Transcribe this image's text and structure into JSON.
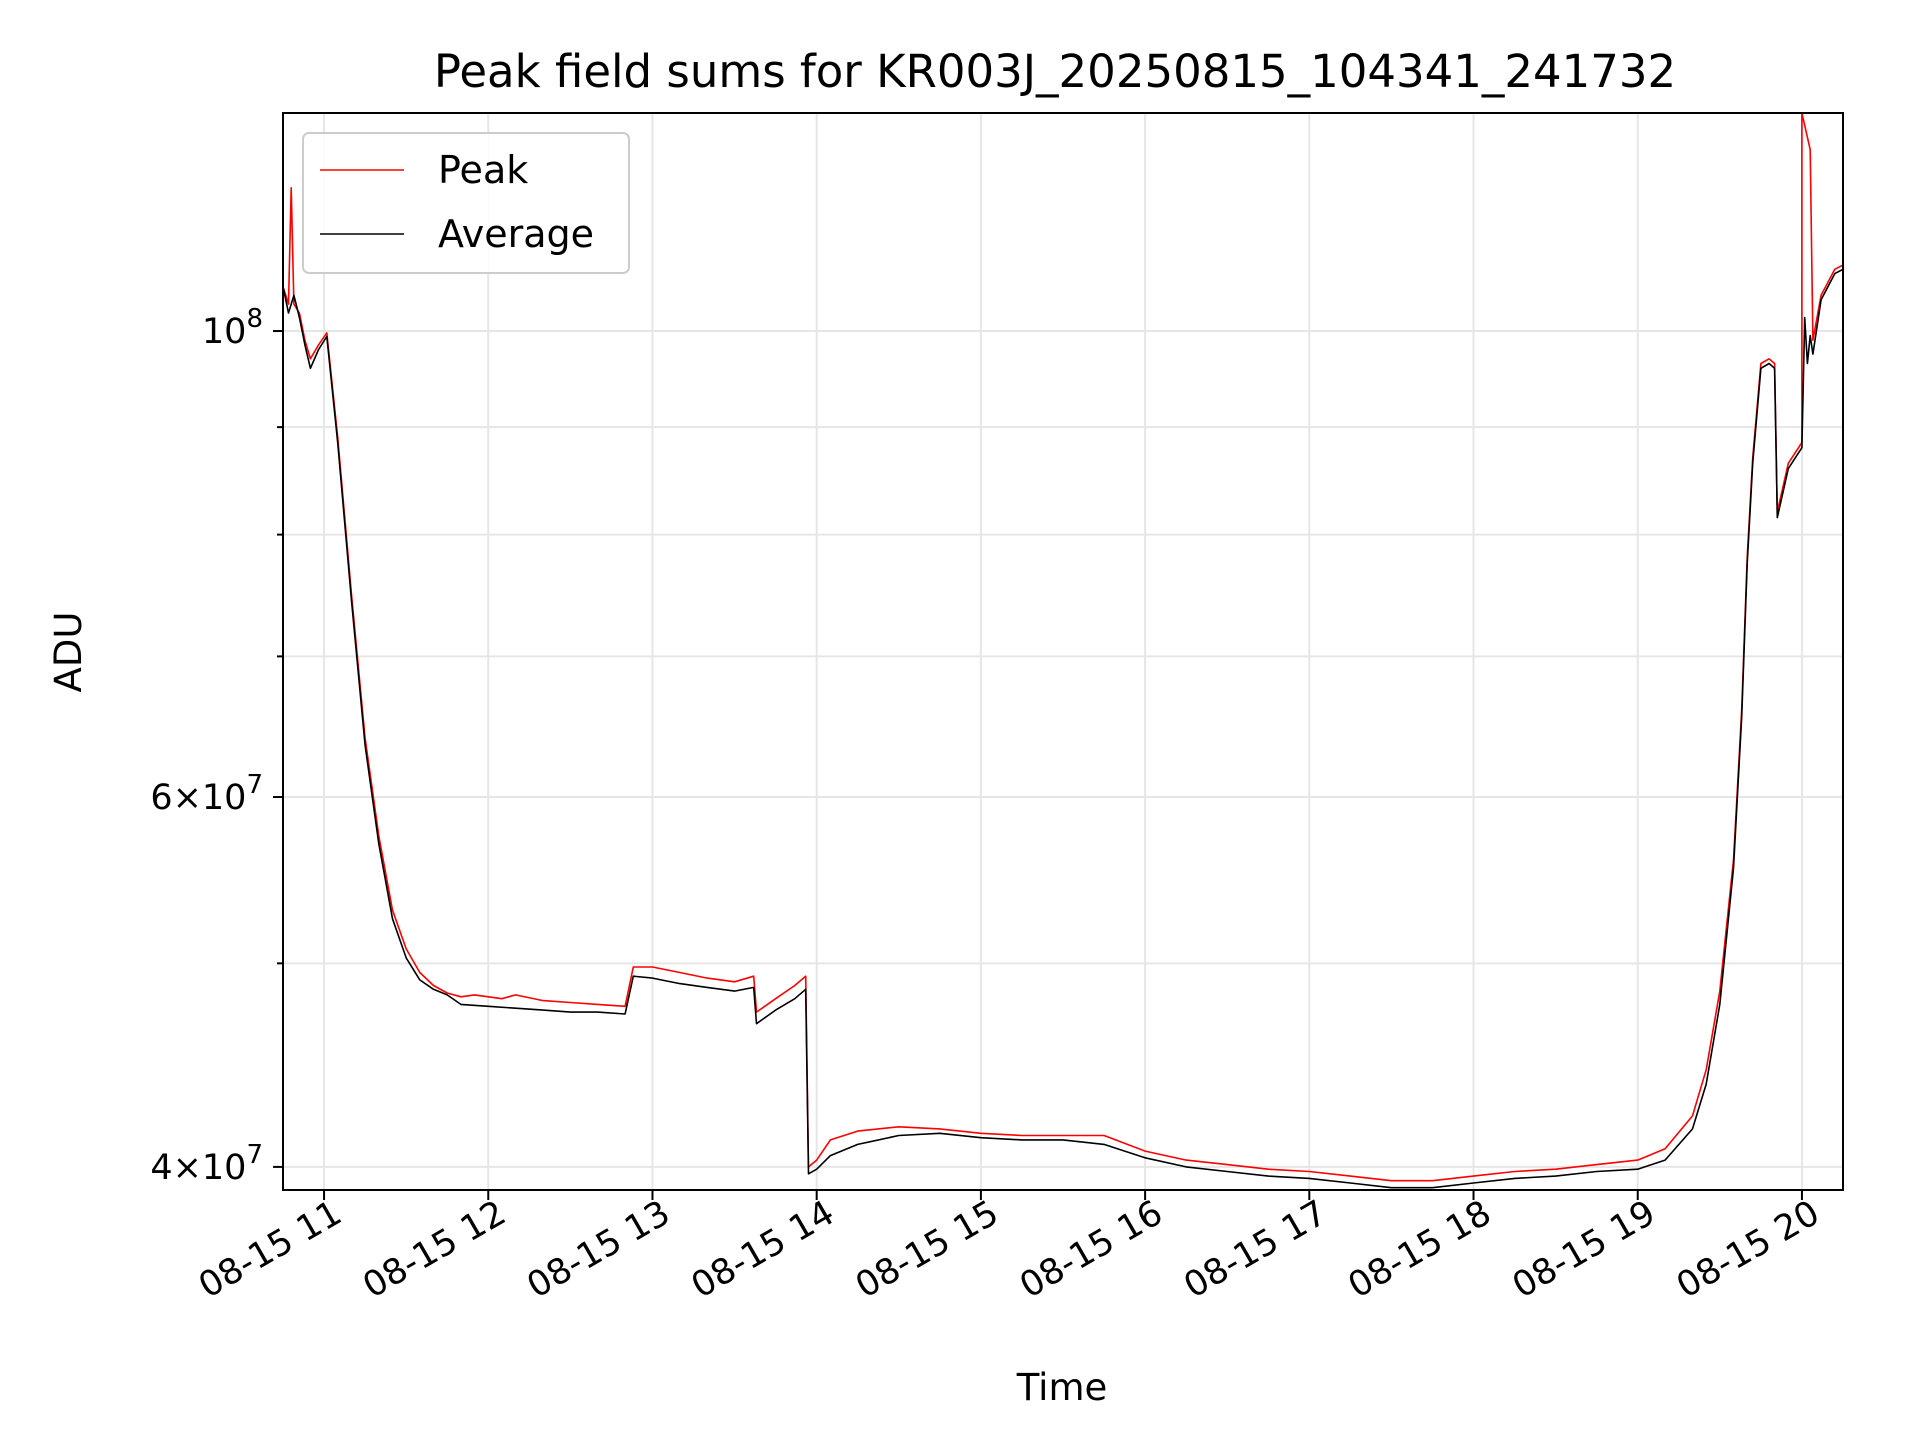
{
  "chart_data": {
    "type": "line",
    "title": "Peak field sums for KR003J_20250815_104341_241732",
    "xlabel": "Time",
    "ylabel": "ADU",
    "y_scale": "log",
    "xlim": [
      "2025-08-15 10:45",
      "2025-08-15 20:15"
    ],
    "ylim": [
      39000000,
      127000000
    ],
    "x_ticks": [
      {
        "t": "2025-08-15 11:00",
        "label": "08-15 11"
      },
      {
        "t": "2025-08-15 12:00",
        "label": "08-15 12"
      },
      {
        "t": "2025-08-15 13:00",
        "label": "08-15 13"
      },
      {
        "t": "2025-08-15 14:00",
        "label": "08-15 14"
      },
      {
        "t": "2025-08-15 15:00",
        "label": "08-15 15"
      },
      {
        "t": "2025-08-15 16:00",
        "label": "08-15 16"
      },
      {
        "t": "2025-08-15 17:00",
        "label": "08-15 17"
      },
      {
        "t": "2025-08-15 18:00",
        "label": "08-15 18"
      },
      {
        "t": "2025-08-15 19:00",
        "label": "08-15 19"
      },
      {
        "t": "2025-08-15 20:00",
        "label": "08-15 20"
      }
    ],
    "y_ticks_major": [
      {
        "v": 40000000,
        "base": "4×10",
        "exp": "7"
      },
      {
        "v": 60000000,
        "base": "6×10",
        "exp": "7"
      },
      {
        "v": 100000000,
        "base": "10",
        "exp": "8"
      }
    ],
    "y_ticks_minor": [
      50000000,
      70000000,
      80000000,
      90000000
    ],
    "grid": true,
    "legend_position": "upper left",
    "series": [
      {
        "name": "Peak",
        "color": "#ff0000",
        "points": [
          [
            "2025-08-15 10:44",
            106000000
          ],
          [
            "2025-08-15 10:47",
            103000000
          ],
          [
            "2025-08-15 10:48",
            117000000
          ],
          [
            "2025-08-15 10:49",
            103000000
          ],
          [
            "2025-08-15 10:51",
            102000000
          ],
          [
            "2025-08-15 10:53",
            99000000
          ],
          [
            "2025-08-15 10:55",
            97000000
          ],
          [
            "2025-08-15 10:58",
            98500000
          ],
          [
            "2025-08-15 11:01",
            99800000
          ],
          [
            "2025-08-15 11:05",
            89000000
          ],
          [
            "2025-08-15 11:10",
            75000000
          ],
          [
            "2025-08-15 11:15",
            64000000
          ],
          [
            "2025-08-15 11:20",
            57500000
          ],
          [
            "2025-08-15 11:25",
            53000000
          ],
          [
            "2025-08-15 11:30",
            50800000
          ],
          [
            "2025-08-15 11:35",
            49500000
          ],
          [
            "2025-08-15 11:40",
            48800000
          ],
          [
            "2025-08-15 11:45",
            48400000
          ],
          [
            "2025-08-15 11:50",
            48200000
          ],
          [
            "2025-08-15 11:55",
            48300000
          ],
          [
            "2025-08-15 12:00",
            48200000
          ],
          [
            "2025-08-15 12:05",
            48100000
          ],
          [
            "2025-08-15 12:10",
            48300000
          ],
          [
            "2025-08-15 12:20",
            48000000
          ],
          [
            "2025-08-15 12:30",
            47900000
          ],
          [
            "2025-08-15 12:40",
            47800000
          ],
          [
            "2025-08-15 12:50",
            47700000
          ],
          [
            "2025-08-15 12:53",
            49800000
          ],
          [
            "2025-08-15 13:00",
            49800000
          ],
          [
            "2025-08-15 13:10",
            49500000
          ],
          [
            "2025-08-15 13:20",
            49200000
          ],
          [
            "2025-08-15 13:30",
            49000000
          ],
          [
            "2025-08-15 13:37",
            49300000
          ],
          [
            "2025-08-15 13:38",
            47400000
          ],
          [
            "2025-08-15 13:45",
            48100000
          ],
          [
            "2025-08-15 13:52",
            48800000
          ],
          [
            "2025-08-15 13:56",
            49300000
          ],
          [
            "2025-08-15 13:57",
            40000000
          ],
          [
            "2025-08-15 14:00",
            40300000
          ],
          [
            "2025-08-15 14:05",
            41200000
          ],
          [
            "2025-08-15 14:15",
            41600000
          ],
          [
            "2025-08-15 14:30",
            41800000
          ],
          [
            "2025-08-15 14:45",
            41700000
          ],
          [
            "2025-08-15 15:00",
            41500000
          ],
          [
            "2025-08-15 15:15",
            41400000
          ],
          [
            "2025-08-15 15:30",
            41400000
          ],
          [
            "2025-08-15 15:45",
            41400000
          ],
          [
            "2025-08-15 16:00",
            40700000
          ],
          [
            "2025-08-15 16:15",
            40300000
          ],
          [
            "2025-08-15 16:30",
            40100000
          ],
          [
            "2025-08-15 16:45",
            39900000
          ],
          [
            "2025-08-15 17:00",
            39800000
          ],
          [
            "2025-08-15 17:15",
            39600000
          ],
          [
            "2025-08-15 17:30",
            39400000
          ],
          [
            "2025-08-15 17:45",
            39400000
          ],
          [
            "2025-08-15 18:00",
            39600000
          ],
          [
            "2025-08-15 18:15",
            39800000
          ],
          [
            "2025-08-15 18:30",
            39900000
          ],
          [
            "2025-08-15 18:45",
            40100000
          ],
          [
            "2025-08-15 19:00",
            40300000
          ],
          [
            "2025-08-15 19:10",
            40800000
          ],
          [
            "2025-08-15 19:20",
            42300000
          ],
          [
            "2025-08-15 19:25",
            44500000
          ],
          [
            "2025-08-15 19:30",
            48500000
          ],
          [
            "2025-08-15 19:35",
            56000000
          ],
          [
            "2025-08-15 19:38",
            66000000
          ],
          [
            "2025-08-15 19:40",
            78000000
          ],
          [
            "2025-08-15 19:42",
            87000000
          ],
          [
            "2025-08-15 19:45",
            96500000
          ],
          [
            "2025-08-15 19:48",
            97000000
          ],
          [
            "2025-08-15 19:50",
            96500000
          ],
          [
            "2025-08-15 19:51",
            82000000
          ],
          [
            "2025-08-15 19:55",
            86500000
          ],
          [
            "2025-08-15 20:00",
            88500000
          ],
          [
            "2025-08-15 20:00",
            127000000
          ],
          [
            "2025-08-15 20:03",
            122000000
          ],
          [
            "2025-08-15 20:04",
            99000000
          ],
          [
            "2025-08-15 20:07",
            104000000
          ],
          [
            "2025-08-15 20:12",
            107000000
          ],
          [
            "2025-08-15 20:15",
            107500000
          ]
        ]
      },
      {
        "name": "Average",
        "color": "#000000",
        "points": [
          [
            "2025-08-15 10:44",
            106500000
          ],
          [
            "2025-08-15 10:47",
            102000000
          ],
          [
            "2025-08-15 10:49",
            104000000
          ],
          [
            "2025-08-15 10:51",
            101500000
          ],
          [
            "2025-08-15 10:53",
            98500000
          ],
          [
            "2025-08-15 10:55",
            96000000
          ],
          [
            "2025-08-15 10:58",
            98000000
          ],
          [
            "2025-08-15 11:01",
            99400000
          ],
          [
            "2025-08-15 11:05",
            88500000
          ],
          [
            "2025-08-15 11:10",
            74500000
          ],
          [
            "2025-08-15 11:15",
            63500000
          ],
          [
            "2025-08-15 11:20",
            57000000
          ],
          [
            "2025-08-15 11:25",
            52500000
          ],
          [
            "2025-08-15 11:30",
            50300000
          ],
          [
            "2025-08-15 11:35",
            49100000
          ],
          [
            "2025-08-15 11:40",
            48600000
          ],
          [
            "2025-08-15 11:45",
            48300000
          ],
          [
            "2025-08-15 11:50",
            47800000
          ],
          [
            "2025-08-15 12:00",
            47700000
          ],
          [
            "2025-08-15 12:10",
            47600000
          ],
          [
            "2025-08-15 12:20",
            47500000
          ],
          [
            "2025-08-15 12:30",
            47400000
          ],
          [
            "2025-08-15 12:40",
            47400000
          ],
          [
            "2025-08-15 12:50",
            47300000
          ],
          [
            "2025-08-15 12:53",
            49300000
          ],
          [
            "2025-08-15 13:00",
            49200000
          ],
          [
            "2025-08-15 13:10",
            48900000
          ],
          [
            "2025-08-15 13:20",
            48700000
          ],
          [
            "2025-08-15 13:30",
            48500000
          ],
          [
            "2025-08-15 13:37",
            48700000
          ],
          [
            "2025-08-15 13:38",
            46800000
          ],
          [
            "2025-08-15 13:45",
            47500000
          ],
          [
            "2025-08-15 13:52",
            48100000
          ],
          [
            "2025-08-15 13:56",
            48600000
          ],
          [
            "2025-08-15 13:57",
            39700000
          ],
          [
            "2025-08-15 14:00",
            39900000
          ],
          [
            "2025-08-15 14:05",
            40500000
          ],
          [
            "2025-08-15 14:15",
            41000000
          ],
          [
            "2025-08-15 14:30",
            41400000
          ],
          [
            "2025-08-15 14:45",
            41500000
          ],
          [
            "2025-08-15 15:00",
            41300000
          ],
          [
            "2025-08-15 15:15",
            41200000
          ],
          [
            "2025-08-15 15:30",
            41200000
          ],
          [
            "2025-08-15 15:45",
            41000000
          ],
          [
            "2025-08-15 16:00",
            40400000
          ],
          [
            "2025-08-15 16:15",
            40000000
          ],
          [
            "2025-08-15 16:30",
            39800000
          ],
          [
            "2025-08-15 16:45",
            39600000
          ],
          [
            "2025-08-15 17:00",
            39500000
          ],
          [
            "2025-08-15 17:15",
            39300000
          ],
          [
            "2025-08-15 17:30",
            39100000
          ],
          [
            "2025-08-15 17:45",
            39100000
          ],
          [
            "2025-08-15 18:00",
            39300000
          ],
          [
            "2025-08-15 18:15",
            39500000
          ],
          [
            "2025-08-15 18:30",
            39600000
          ],
          [
            "2025-08-15 18:45",
            39800000
          ],
          [
            "2025-08-15 19:00",
            39900000
          ],
          [
            "2025-08-15 19:10",
            40300000
          ],
          [
            "2025-08-15 19:20",
            41700000
          ],
          [
            "2025-08-15 19:25",
            43800000
          ],
          [
            "2025-08-15 19:30",
            47800000
          ],
          [
            "2025-08-15 19:35",
            55500000
          ],
          [
            "2025-08-15 19:38",
            65500000
          ],
          [
            "2025-08-15 19:40",
            77500000
          ],
          [
            "2025-08-15 19:42",
            86500000
          ],
          [
            "2025-08-15 19:45",
            96000000
          ],
          [
            "2025-08-15 19:48",
            96500000
          ],
          [
            "2025-08-15 19:50",
            96000000
          ],
          [
            "2025-08-15 19:51",
            81500000
          ],
          [
            "2025-08-15 19:55",
            86000000
          ],
          [
            "2025-08-15 20:00",
            88000000
          ],
          [
            "2025-08-15 20:01",
            101500000
          ],
          [
            "2025-08-15 20:02",
            96500000
          ],
          [
            "2025-08-15 20:03",
            99500000
          ],
          [
            "2025-08-15 20:04",
            97500000
          ],
          [
            "2025-08-15 20:07",
            103500000
          ],
          [
            "2025-08-15 20:12",
            106500000
          ],
          [
            "2025-08-15 20:15",
            107000000
          ]
        ]
      }
    ]
  }
}
